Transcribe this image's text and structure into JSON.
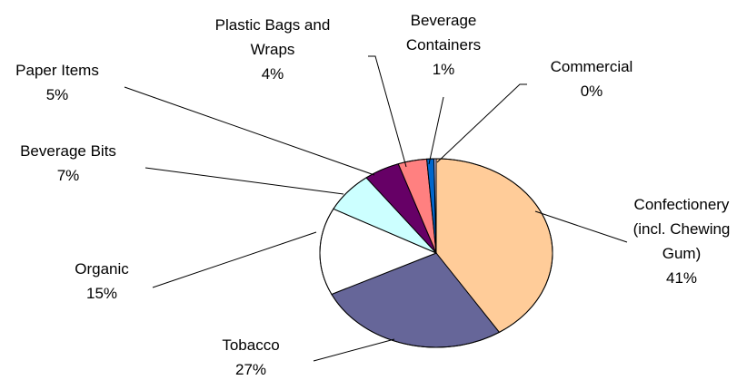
{
  "chart_data": {
    "type": "pie",
    "title": "",
    "slices": [
      {
        "label": [
          "Confectionery",
          "(incl. Chewing",
          "Gum)"
        ],
        "pct_label": "41%",
        "value": 41,
        "color": "#FFCC99"
      },
      {
        "label": [
          "Tobacco"
        ],
        "pct_label": "27%",
        "value": 27,
        "color": "#666699"
      },
      {
        "label": [
          "Organic"
        ],
        "pct_label": "15%",
        "value": 15,
        "color": "#FFFFFF"
      },
      {
        "label": [
          "Beverage Bits"
        ],
        "pct_label": "7%",
        "value": 7,
        "color": "#CCFFFF"
      },
      {
        "label": [
          "Paper Items"
        ],
        "pct_label": "5%",
        "value": 5,
        "color": "#660066"
      },
      {
        "label": [
          "Plastic Bags and",
          "Wraps"
        ],
        "pct_label": "4%",
        "value": 4,
        "color": "#FF8080"
      },
      {
        "label": [
          "Beverage",
          "Containers"
        ],
        "pct_label": "1%",
        "value": 1,
        "color": "#0066CC"
      },
      {
        "label": [
          "Commercial"
        ],
        "pct_label": "0%",
        "value": 0.3,
        "color": "#CCCCFF"
      }
    ]
  }
}
